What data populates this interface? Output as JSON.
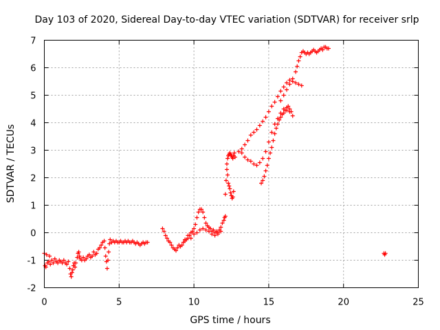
{
  "chart_data": {
    "type": "scatter",
    "title": "Day 103 of 2020, Sidereal Day-to-day VTEC variation (SDTVAR) for receiver srlp",
    "xlabel": "GPS time / hours",
    "ylabel": "SDTVAR / TECUs",
    "xlim": [
      0,
      25
    ],
    "ylim": [
      -2,
      7
    ],
    "xticks": [
      "0",
      "5",
      "10",
      "15",
      "20",
      "25"
    ],
    "yticks": [
      "-2",
      "-1",
      "0",
      "1",
      "2",
      "3",
      "4",
      "5",
      "6",
      "7"
    ],
    "grid": true,
    "marker": "+",
    "color": "#ff0000",
    "series": [
      {
        "points": [
          [
            0.0,
            -0.75
          ],
          [
            0.05,
            -1.2
          ],
          [
            0.1,
            -1.25
          ],
          [
            0.15,
            -0.8
          ],
          [
            0.2,
            -1.1
          ],
          [
            0.3,
            -1.05
          ],
          [
            0.35,
            -0.85
          ],
          [
            0.4,
            -1.15
          ],
          [
            0.5,
            -1.0
          ],
          [
            0.6,
            -1.1
          ],
          [
            0.7,
            -0.95
          ],
          [
            0.8,
            -1.05
          ],
          [
            0.9,
            -1.1
          ],
          [
            1.0,
            -1.0
          ],
          [
            1.1,
            -1.05
          ],
          [
            1.2,
            -1.1
          ],
          [
            1.3,
            -1.0
          ],
          [
            1.4,
            -1.1
          ],
          [
            1.5,
            -1.15
          ],
          [
            1.6,
            -1.05
          ],
          [
            1.7,
            -1.3
          ],
          [
            1.75,
            -1.5
          ],
          [
            1.8,
            -1.6
          ],
          [
            1.85,
            -1.45
          ],
          [
            1.9,
            -1.35
          ],
          [
            1.95,
            -1.2
          ],
          [
            2.0,
            -1.1
          ],
          [
            2.05,
            -1.25
          ],
          [
            2.1,
            -1.1
          ],
          [
            2.2,
            -0.9
          ],
          [
            2.25,
            -0.75
          ],
          [
            2.3,
            -0.7
          ],
          [
            2.35,
            -0.85
          ],
          [
            2.4,
            -0.95
          ],
          [
            2.5,
            -1.0
          ],
          [
            2.6,
            -0.9
          ],
          [
            2.7,
            -1.0
          ],
          [
            2.8,
            -0.95
          ],
          [
            2.9,
            -0.85
          ],
          [
            3.0,
            -0.8
          ],
          [
            3.1,
            -0.9
          ],
          [
            3.2,
            -0.85
          ],
          [
            3.3,
            -0.7
          ],
          [
            3.4,
            -0.8
          ],
          [
            3.5,
            -0.75
          ],
          [
            3.6,
            -0.6
          ],
          [
            3.7,
            -0.55
          ],
          [
            3.8,
            -0.45
          ],
          [
            3.9,
            -0.35
          ],
          [
            4.0,
            -0.3
          ],
          [
            4.05,
            -0.55
          ],
          [
            4.1,
            -0.85
          ],
          [
            4.15,
            -1.05
          ],
          [
            4.2,
            -1.3
          ],
          [
            4.25,
            -1.0
          ],
          [
            4.3,
            -0.7
          ],
          [
            4.35,
            -0.4
          ],
          [
            4.4,
            -0.25
          ],
          [
            4.5,
            -0.35
          ],
          [
            4.6,
            -0.3
          ],
          [
            4.7,
            -0.35
          ],
          [
            4.8,
            -0.3
          ],
          [
            4.9,
            -0.35
          ],
          [
            5.0,
            -0.35
          ],
          [
            5.1,
            -0.3
          ],
          [
            5.2,
            -0.35
          ],
          [
            5.3,
            -0.35
          ],
          [
            5.4,
            -0.3
          ],
          [
            5.5,
            -0.35
          ],
          [
            5.6,
            -0.3
          ],
          [
            5.7,
            -0.35
          ],
          [
            5.8,
            -0.35
          ],
          [
            5.9,
            -0.3
          ],
          [
            6.0,
            -0.35
          ],
          [
            6.1,
            -0.4
          ],
          [
            6.2,
            -0.35
          ],
          [
            6.3,
            -0.4
          ],
          [
            6.4,
            -0.45
          ],
          [
            6.5,
            -0.4
          ],
          [
            6.6,
            -0.35
          ],
          [
            6.7,
            -0.4
          ],
          [
            6.8,
            -0.35
          ],
          [
            6.9,
            -0.35
          ],
          [
            7.9,
            0.15
          ],
          [
            8.0,
            0.05
          ],
          [
            8.1,
            -0.1
          ],
          [
            8.2,
            -0.2
          ],
          [
            8.3,
            -0.3
          ],
          [
            8.4,
            -0.35
          ],
          [
            8.5,
            -0.45
          ],
          [
            8.6,
            -0.55
          ],
          [
            8.7,
            -0.6
          ],
          [
            8.8,
            -0.65
          ],
          [
            8.9,
            -0.55
          ],
          [
            9.0,
            -0.45
          ],
          [
            9.1,
            -0.5
          ],
          [
            9.2,
            -0.45
          ],
          [
            9.3,
            -0.35
          ],
          [
            9.4,
            -0.3
          ],
          [
            9.5,
            -0.25
          ],
          [
            9.6,
            -0.2
          ],
          [
            9.7,
            -0.1
          ],
          [
            9.8,
            0.0
          ],
          [
            9.9,
            0.05
          ],
          [
            10.0,
            0.15
          ],
          [
            10.1,
            0.3
          ],
          [
            10.2,
            0.55
          ],
          [
            10.3,
            0.75
          ],
          [
            10.4,
            0.85
          ],
          [
            10.5,
            0.85
          ],
          [
            10.6,
            0.75
          ],
          [
            10.7,
            0.55
          ],
          [
            10.8,
            0.35
          ],
          [
            10.9,
            0.25
          ],
          [
            11.0,
            0.2
          ],
          [
            11.1,
            0.15
          ],
          [
            11.2,
            0.05
          ],
          [
            11.3,
            0.1
          ],
          [
            11.4,
            0.0
          ],
          [
            11.5,
            0.05
          ],
          [
            11.6,
            0.0
          ],
          [
            11.7,
            0.1
          ],
          [
            11.8,
            0.2
          ],
          [
            11.9,
            0.35
          ],
          [
            12.0,
            0.45
          ],
          [
            12.05,
            0.55
          ],
          [
            12.1,
            0.6
          ],
          [
            10.0,
            -0.05
          ],
          [
            10.2,
            0.0
          ],
          [
            10.4,
            0.1
          ],
          [
            10.6,
            0.15
          ],
          [
            10.8,
            0.1
          ],
          [
            11.0,
            0.05
          ],
          [
            11.2,
            -0.05
          ],
          [
            11.4,
            -0.1
          ],
          [
            11.6,
            -0.05
          ],
          [
            11.8,
            0.05
          ],
          [
            9.6,
            -0.1
          ],
          [
            9.8,
            -0.2
          ],
          [
            9.4,
            -0.25
          ],
          [
            12.1,
            1.4
          ],
          [
            12.15,
            1.9
          ],
          [
            12.2,
            2.3
          ],
          [
            12.25,
            2.1
          ],
          [
            12.3,
            1.8
          ],
          [
            12.35,
            1.7
          ],
          [
            12.4,
            1.6
          ],
          [
            12.45,
            1.45
          ],
          [
            12.5,
            1.35
          ],
          [
            12.55,
            1.25
          ],
          [
            12.6,
            1.3
          ],
          [
            12.65,
            1.5
          ],
          [
            12.2,
            2.5
          ],
          [
            12.25,
            2.7
          ],
          [
            12.3,
            2.8
          ],
          [
            12.35,
            2.85
          ],
          [
            12.4,
            2.9
          ],
          [
            12.45,
            2.85
          ],
          [
            12.5,
            2.8
          ],
          [
            12.55,
            2.75
          ],
          [
            12.6,
            2.7
          ],
          [
            12.65,
            2.8
          ],
          [
            12.7,
            2.9
          ],
          [
            12.75,
            2.75
          ],
          [
            13.0,
            2.95
          ],
          [
            13.2,
            3.05
          ],
          [
            13.4,
            3.2
          ],
          [
            13.6,
            3.35
          ],
          [
            13.8,
            3.55
          ],
          [
            14.0,
            3.65
          ],
          [
            14.2,
            3.75
          ],
          [
            14.4,
            3.9
          ],
          [
            14.6,
            4.05
          ],
          [
            14.8,
            4.2
          ],
          [
            15.0,
            4.4
          ],
          [
            15.2,
            4.6
          ],
          [
            15.4,
            4.75
          ],
          [
            15.6,
            4.95
          ],
          [
            15.8,
            5.15
          ],
          [
            16.0,
            5.3
          ],
          [
            16.2,
            5.45
          ],
          [
            16.4,
            5.55
          ],
          [
            16.6,
            5.5
          ],
          [
            16.8,
            5.45
          ],
          [
            17.0,
            5.4
          ],
          [
            17.2,
            5.35
          ],
          [
            13.2,
            2.9
          ],
          [
            13.4,
            2.75
          ],
          [
            13.6,
            2.65
          ],
          [
            13.8,
            2.6
          ],
          [
            14.0,
            2.5
          ],
          [
            14.2,
            2.45
          ],
          [
            14.4,
            2.55
          ],
          [
            14.6,
            2.7
          ],
          [
            14.8,
            2.95
          ],
          [
            15.0,
            3.3
          ],
          [
            15.2,
            3.65
          ],
          [
            15.4,
            3.95
          ],
          [
            15.6,
            4.15
          ],
          [
            15.8,
            4.35
          ],
          [
            16.0,
            4.5
          ],
          [
            16.2,
            4.45
          ],
          [
            16.4,
            4.4
          ],
          [
            16.6,
            4.25
          ],
          [
            14.5,
            1.8
          ],
          [
            14.6,
            1.9
          ],
          [
            14.7,
            2.05
          ],
          [
            14.8,
            2.25
          ],
          [
            14.9,
            2.45
          ],
          [
            15.0,
            2.7
          ],
          [
            15.1,
            2.9
          ],
          [
            15.2,
            3.1
          ],
          [
            15.3,
            3.35
          ],
          [
            15.4,
            3.6
          ],
          [
            15.5,
            3.8
          ],
          [
            15.6,
            3.95
          ],
          [
            15.7,
            4.1
          ],
          [
            15.8,
            4.2
          ],
          [
            15.9,
            4.3
          ],
          [
            16.0,
            4.35
          ],
          [
            16.1,
            4.45
          ],
          [
            16.2,
            4.55
          ],
          [
            16.3,
            4.6
          ],
          [
            16.4,
            4.5
          ],
          [
            16.5,
            4.4
          ],
          [
            15.8,
            4.8
          ],
          [
            16.0,
            5.0
          ],
          [
            16.2,
            5.2
          ],
          [
            16.4,
            5.4
          ],
          [
            16.6,
            5.6
          ],
          [
            16.8,
            5.85
          ],
          [
            16.9,
            6.05
          ],
          [
            17.0,
            6.25
          ],
          [
            17.1,
            6.4
          ],
          [
            17.2,
            6.55
          ],
          [
            17.3,
            6.6
          ],
          [
            17.4,
            6.55
          ],
          [
            17.5,
            6.5
          ],
          [
            17.6,
            6.55
          ],
          [
            17.7,
            6.5
          ],
          [
            17.8,
            6.55
          ],
          [
            17.9,
            6.6
          ],
          [
            18.0,
            6.65
          ],
          [
            18.1,
            6.6
          ],
          [
            18.2,
            6.55
          ],
          [
            18.3,
            6.6
          ],
          [
            18.4,
            6.65
          ],
          [
            18.5,
            6.7
          ],
          [
            18.6,
            6.65
          ],
          [
            18.7,
            6.75
          ],
          [
            18.8,
            6.75
          ],
          [
            18.9,
            6.7
          ],
          [
            19.0,
            6.7
          ],
          [
            22.7,
            -0.75
          ],
          [
            22.75,
            -0.8
          ],
          [
            22.8,
            -0.75
          ]
        ]
      }
    ]
  }
}
